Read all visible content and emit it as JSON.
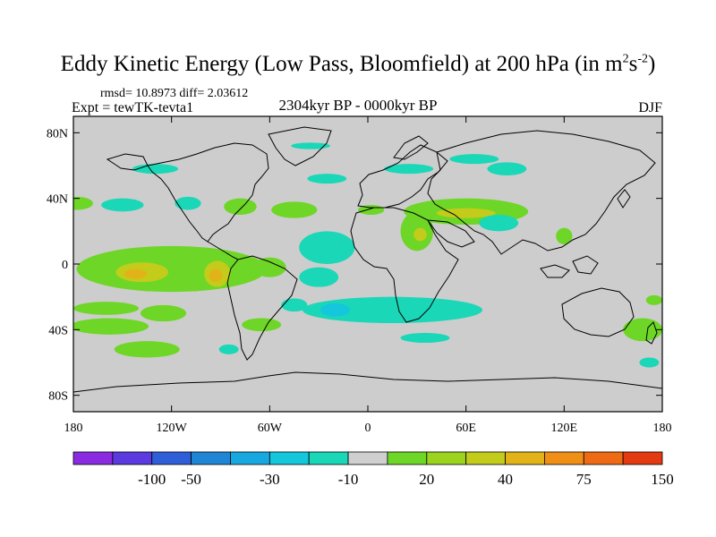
{
  "title": {
    "main": "Eddy Kinetic Energy (Low Pass, Bloomfield) at 200 hPa (in m",
    "sup1": "2",
    "mid": "s",
    "sup2": "-2",
    "end": ")"
  },
  "stats": "rmsd= 10.8973 diff= 2.03612",
  "experiment": "Expt = tewTK-tevta1",
  "period": "2304kyr BP - 0000kyr BP",
  "season": "DJF",
  "axes": {
    "lat_ticks": [
      {
        "label": "80N",
        "value": 80
      },
      {
        "label": "40N",
        "value": 40
      },
      {
        "label": "0",
        "value": 0
      },
      {
        "label": "40S",
        "value": -40
      },
      {
        "label": "80S",
        "value": -80
      }
    ],
    "lon_ticks": [
      {
        "label": "180",
        "value": -180
      },
      {
        "label": "120W",
        "value": -120
      },
      {
        "label": "60W",
        "value": -60
      },
      {
        "label": "0",
        "value": 0
      },
      {
        "label": "60E",
        "value": 60
      },
      {
        "label": "120E",
        "value": 120
      },
      {
        "label": "180",
        "value": 180
      }
    ]
  },
  "colorbar": {
    "colors": [
      "#8a2be2",
      "#5b3ae0",
      "#2f5fd8",
      "#1f86d6",
      "#18a8e0",
      "#14c7dc",
      "#1ad7b8",
      "#cfcfcf",
      "#6ed626",
      "#9cd31e",
      "#c3cc1a",
      "#e2b318",
      "#f08f16",
      "#ee6a14",
      "#e43a12"
    ],
    "labels": [
      {
        "text": "-100",
        "index": 2
      },
      {
        "text": "-50",
        "index": 3
      },
      {
        "text": "-30",
        "index": 5
      },
      {
        "text": "-10",
        "index": 7
      },
      {
        "text": "20",
        "index": 9
      },
      {
        "text": "40",
        "index": 11
      },
      {
        "text": "75",
        "index": 13
      },
      {
        "text": "150",
        "index": 15
      }
    ]
  },
  "regions": [
    {
      "color": "#1ad7b8",
      "lon": -130,
      "lat": 58,
      "rx": 14,
      "ry": 3
    },
    {
      "color": "#1ad7b8",
      "lon": 25,
      "lat": 58,
      "rx": 15,
      "ry": 3
    },
    {
      "color": "#1ad7b8",
      "lon": 85,
      "lat": 58,
      "rx": 12,
      "ry": 4
    },
    {
      "color": "#1ad7b8",
      "lon": -35,
      "lat": 72,
      "rx": 12,
      "ry": 2
    },
    {
      "color": "#1ad7b8",
      "lon": -25,
      "lat": 52,
      "rx": 12,
      "ry": 3
    },
    {
      "color": "#1ad7b8",
      "lon": 65,
      "lat": 64,
      "rx": 15,
      "ry": 3
    },
    {
      "color": "#6ed626",
      "lon": -178,
      "lat": 37,
      "rx": 10,
      "ry": 4
    },
    {
      "color": "#1ad7b8",
      "lon": -150,
      "lat": 36,
      "rx": 13,
      "ry": 4
    },
    {
      "color": "#1ad7b8",
      "lon": -110,
      "lat": 37,
      "rx": 8,
      "ry": 4
    },
    {
      "color": "#6ed626",
      "lon": -78,
      "lat": 35,
      "rx": 10,
      "ry": 5
    },
    {
      "color": "#6ed626",
      "lon": -45,
      "lat": 33,
      "rx": 14,
      "ry": 5
    },
    {
      "color": "#6ed626",
      "lon": 2,
      "lat": 33,
      "rx": 8,
      "ry": 3
    },
    {
      "color": "#6ed626",
      "lon": 60,
      "lat": 32,
      "rx": 38,
      "ry": 8
    },
    {
      "color": "#c3cc1a",
      "lon": 60,
      "lat": 31,
      "rx": 18,
      "ry": 3
    },
    {
      "color": "#6ed626",
      "lon": 30,
      "lat": 20,
      "rx": 10,
      "ry": 12
    },
    {
      "color": "#c3cc1a",
      "lon": 32,
      "lat": 18,
      "rx": 4,
      "ry": 4
    },
    {
      "color": "#1ad7b8",
      "lon": 80,
      "lat": 25,
      "rx": 12,
      "ry": 5
    },
    {
      "color": "#6ed626",
      "lon": 120,
      "lat": 17,
      "rx": 5,
      "ry": 5
    },
    {
      "color": "#1ad7b8",
      "lon": -25,
      "lat": 10,
      "rx": 17,
      "ry": 10
    },
    {
      "color": "#1ad7b8",
      "lon": -30,
      "lat": -8,
      "rx": 12,
      "ry": 6
    },
    {
      "color": "#6ed626",
      "lon": -120,
      "lat": -3,
      "rx": 58,
      "ry": 14
    },
    {
      "color": "#c3cc1a",
      "lon": -138,
      "lat": -5,
      "rx": 16,
      "ry": 6
    },
    {
      "color": "#e2b318",
      "lon": -142,
      "lat": -6,
      "rx": 7,
      "ry": 3
    },
    {
      "color": "#c3cc1a",
      "lon": -92,
      "lat": -6,
      "rx": 8,
      "ry": 8
    },
    {
      "color": "#e2b318",
      "lon": -93,
      "lat": -7,
      "rx": 4,
      "ry": 4
    },
    {
      "color": "#6ed626",
      "lon": -60,
      "lat": -2,
      "rx": 10,
      "ry": 6
    },
    {
      "color": "#6ed626",
      "lon": -160,
      "lat": -27,
      "rx": 20,
      "ry": 4
    },
    {
      "color": "#6ed626",
      "lon": -125,
      "lat": -30,
      "rx": 14,
      "ry": 5
    },
    {
      "color": "#1ad7b8",
      "lon": -45,
      "lat": -25,
      "rx": 8,
      "ry": 4
    },
    {
      "color": "#1ad7b8",
      "lon": 15,
      "lat": -28,
      "rx": 55,
      "ry": 8
    },
    {
      "color": "#14c7dc",
      "lon": -20,
      "lat": -28,
      "rx": 9,
      "ry": 4
    },
    {
      "color": "#6ed626",
      "lon": -158,
      "lat": -38,
      "rx": 24,
      "ry": 5
    },
    {
      "color": "#6ed626",
      "lon": -135,
      "lat": -52,
      "rx": 20,
      "ry": 5
    },
    {
      "color": "#6ed626",
      "lon": -65,
      "lat": -37,
      "rx": 12,
      "ry": 4
    },
    {
      "color": "#1ad7b8",
      "lon": -85,
      "lat": -52,
      "rx": 6,
      "ry": 3
    },
    {
      "color": "#1ad7b8",
      "lon": 35,
      "lat": -45,
      "rx": 15,
      "ry": 3
    },
    {
      "color": "#6ed626",
      "lon": 168,
      "lat": -40,
      "rx": 12,
      "ry": 7
    },
    {
      "color": "#6ed626",
      "lon": 175,
      "lat": -22,
      "rx": 5,
      "ry": 3
    },
    {
      "color": "#1ad7b8",
      "lon": 172,
      "lat": -60,
      "rx": 6,
      "ry": 3
    }
  ]
}
